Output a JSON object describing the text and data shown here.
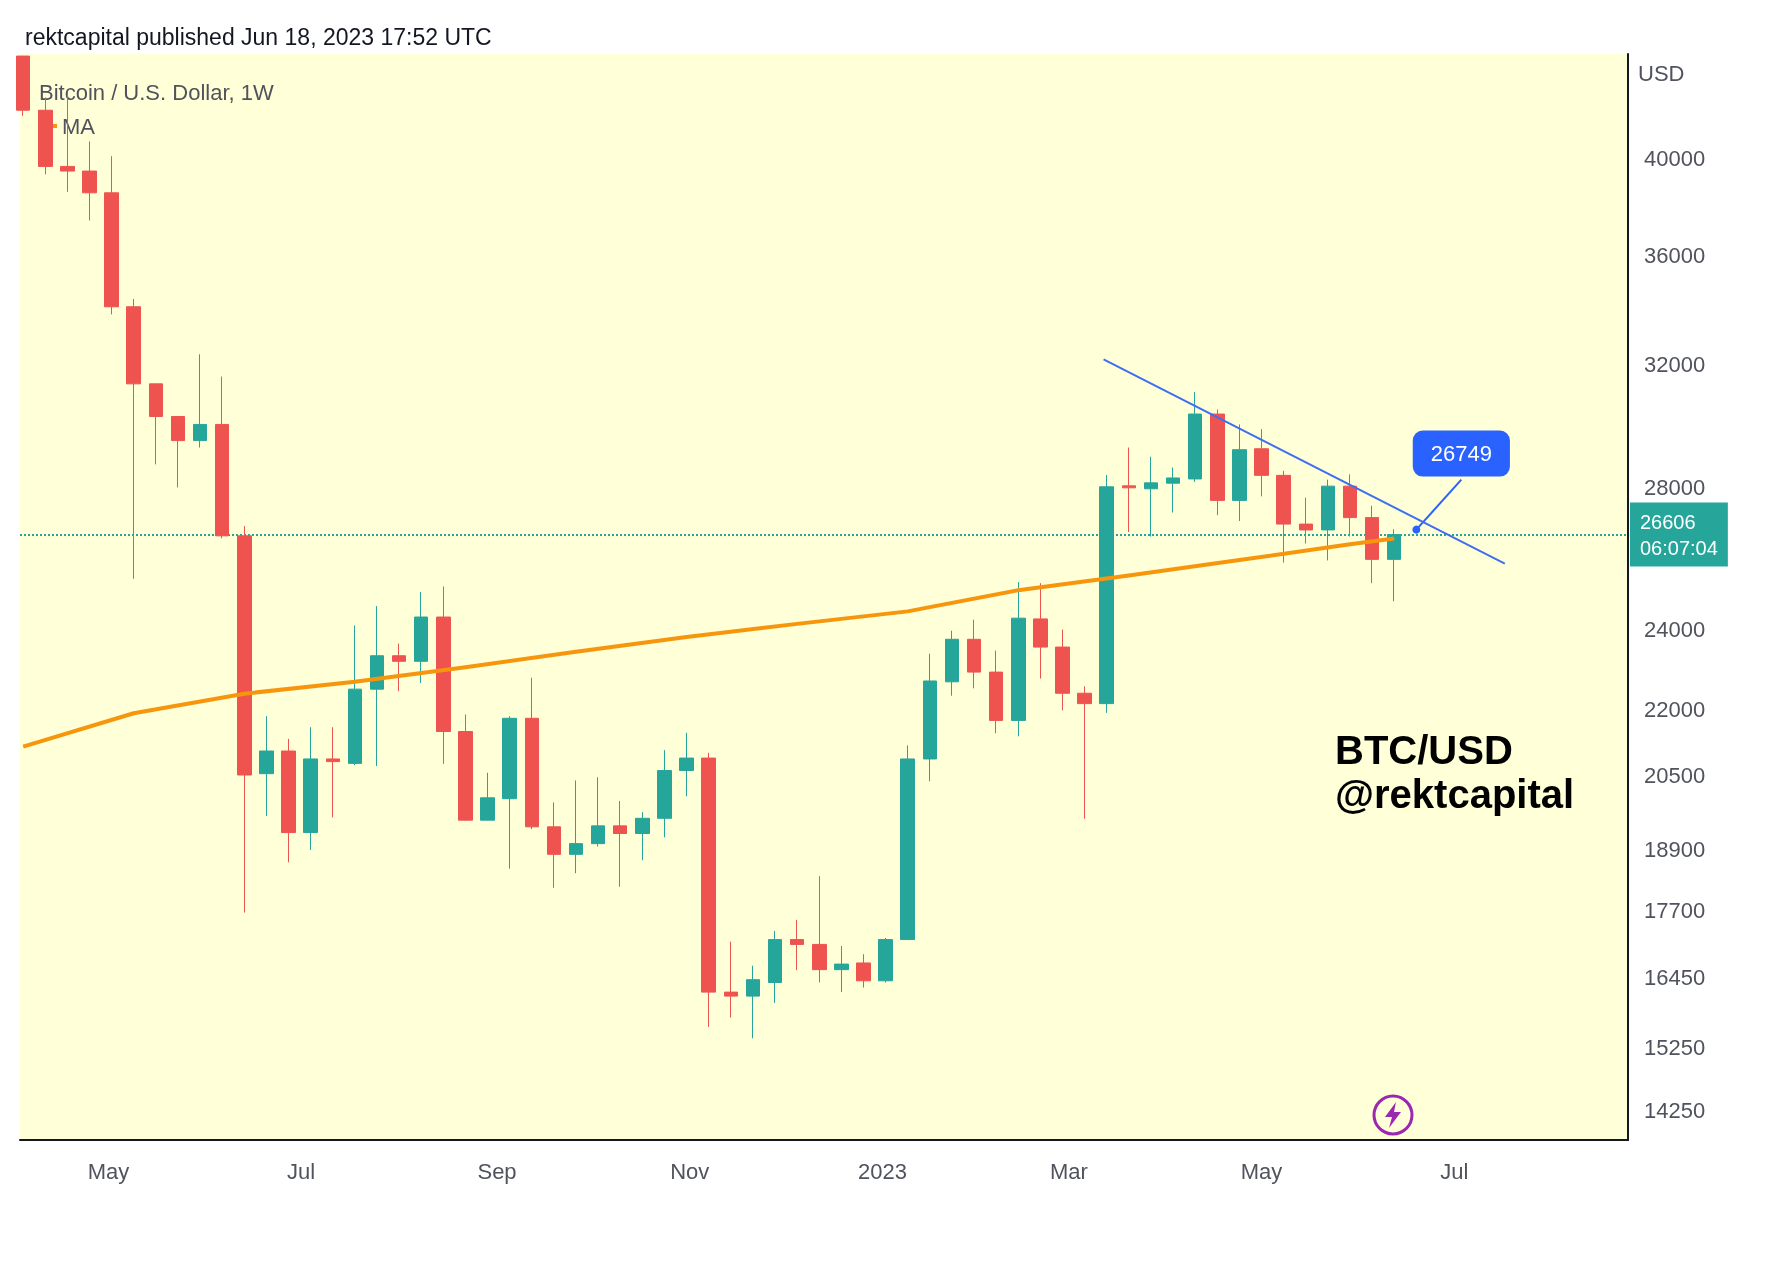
{
  "chart_data": {
    "type": "candlestick",
    "title": "rektcapital published Jun 18, 2023 17:52 UTC",
    "subtitle": "Bitcoin / U.S. Dollar, 1W",
    "ylabel": "USD",
    "x": [
      "2022-04-04",
      "2022-04-11",
      "2022-04-18",
      "2022-04-25",
      "2022-05-02",
      "2022-05-09",
      "2022-05-16",
      "2022-05-23",
      "2022-05-30",
      "2022-06-06",
      "2022-06-13",
      "2022-06-20",
      "2022-06-27",
      "2022-07-04",
      "2022-07-11",
      "2022-07-18",
      "2022-07-25",
      "2022-08-01",
      "2022-08-08",
      "2022-08-15",
      "2022-08-22",
      "2022-08-29",
      "2022-09-05",
      "2022-09-12",
      "2022-09-19",
      "2022-09-26",
      "2022-10-03",
      "2022-10-10",
      "2022-10-17",
      "2022-10-24",
      "2022-10-31",
      "2022-11-07",
      "2022-11-14",
      "2022-11-21",
      "2022-11-28",
      "2022-12-05",
      "2022-12-12",
      "2022-12-19",
      "2022-12-26",
      "2023-01-02",
      "2023-01-09",
      "2023-01-16",
      "2023-01-23",
      "2023-01-30",
      "2023-02-06",
      "2023-02-13",
      "2023-02-20",
      "2023-02-27",
      "2023-03-06",
      "2023-03-13",
      "2023-03-20",
      "2023-03-27",
      "2023-04-03",
      "2023-04-10",
      "2023-04-17",
      "2023-04-24",
      "2023-05-01",
      "2023-05-08",
      "2023-05-15",
      "2023-05-22",
      "2023-05-29",
      "2023-06-05",
      "2023-06-12"
    ],
    "ohlc": [
      [
        44700,
        44700,
        41900,
        42150
      ],
      [
        42150,
        42740,
        39320,
        39660
      ],
      [
        39660,
        42860,
        38580,
        39460
      ],
      [
        39460,
        40750,
        37400,
        38540
      ],
      [
        38540,
        40100,
        33780,
        34060
      ],
      [
        34060,
        34350,
        25360,
        31330
      ],
      [
        31330,
        31330,
        28710,
        30240
      ],
      [
        30240,
        30240,
        28000,
        29460
      ],
      [
        29460,
        32350,
        29240,
        29980
      ],
      [
        29980,
        31580,
        26500,
        26570
      ],
      [
        26570,
        26850,
        17660,
        20500
      ],
      [
        20530,
        21850,
        19610,
        21040
      ],
      [
        21040,
        21320,
        18650,
        19260
      ],
      [
        19260,
        21590,
        18900,
        20860
      ],
      [
        20860,
        21590,
        19580,
        20800
      ],
      [
        20760,
        24110,
        20720,
        22500
      ],
      [
        22500,
        24620,
        20700,
        23330
      ],
      [
        23330,
        23640,
        22450,
        23190
      ],
      [
        23190,
        25000,
        22650,
        24330
      ],
      [
        24330,
        25150,
        20750,
        21490
      ],
      [
        21490,
        21890,
        19510,
        19520
      ],
      [
        19520,
        20550,
        19520,
        20000
      ],
      [
        19980,
        21850,
        18520,
        21800
      ],
      [
        21800,
        22780,
        19330,
        19380
      ],
      [
        19380,
        19900,
        18140,
        18810
      ],
      [
        18810,
        20380,
        18430,
        19030
      ],
      [
        19030,
        20450,
        18970,
        19400
      ],
      [
        19400,
        19930,
        18160,
        19240
      ],
      [
        19240,
        19690,
        18690,
        19560
      ],
      [
        19560,
        21060,
        19160,
        20600
      ],
      [
        20600,
        21460,
        20030,
        20880
      ],
      [
        20880,
        21000,
        15600,
        16200
      ],
      [
        16200,
        17110,
        15760,
        16130
      ],
      [
        16130,
        16670,
        15410,
        16420
      ],
      [
        16370,
        17310,
        16010,
        17150
      ],
      [
        17150,
        17520,
        16590,
        17060
      ],
      [
        17060,
        18370,
        16370,
        16600
      ],
      [
        16600,
        17030,
        16200,
        16700
      ],
      [
        16720,
        16880,
        16280,
        16400
      ],
      [
        16400,
        17180,
        16370,
        17150
      ],
      [
        17150,
        21170,
        17150,
        20860
      ],
      [
        20860,
        23380,
        20360,
        22700
      ],
      [
        22680,
        23970,
        22340,
        23750
      ],
      [
        23750,
        24260,
        22520,
        22920
      ],
      [
        22920,
        23460,
        21450,
        21750
      ],
      [
        21750,
        25270,
        21380,
        24300
      ],
      [
        24280,
        25240,
        22760,
        23550
      ],
      [
        23550,
        24000,
        21990,
        22400
      ],
      [
        22400,
        22570,
        19550,
        22150
      ],
      [
        22150,
        28380,
        21930,
        28020
      ],
      [
        28050,
        29240,
        26680,
        27990
      ],
      [
        27960,
        28950,
        26550,
        28140
      ],
      [
        28130,
        28610,
        27250,
        28290
      ],
      [
        28260,
        31050,
        28170,
        30320
      ],
      [
        30320,
        30470,
        27170,
        27610
      ],
      [
        27610,
        29980,
        27000,
        29170
      ],
      [
        29200,
        29830,
        27730,
        28370
      ],
      [
        28370,
        28510,
        25810,
        26910
      ],
      [
        26910,
        27690,
        26350,
        26740
      ],
      [
        26740,
        28240,
        25870,
        28040
      ],
      [
        28040,
        28400,
        26550,
        27100
      ],
      [
        27100,
        27450,
        25240,
        25900
      ],
      [
        25900,
        26760,
        24750,
        26606
      ]
    ],
    "series": [
      {
        "name": "MA",
        "type": "line",
        "color": "#f7960d",
        "x": [
          "2022-04-04",
          "2022-05-09",
          "2022-06-13",
          "2022-07-18",
          "2022-08-22",
          "2022-09-26",
          "2022-10-31",
          "2022-12-05",
          "2023-01-09",
          "2023-02-13",
          "2023-03-20",
          "2023-04-24",
          "2023-05-29",
          "2023-06-12"
        ],
        "values": [
          21140,
          21920,
          22390,
          22680,
          23040,
          23430,
          23810,
          24150,
          24480,
          25050,
          25450,
          25880,
          26330,
          26490
        ]
      },
      {
        "type": "line",
        "color": "#3f6ff0",
        "x": [
          "2023-03-12",
          "2023-07-17"
        ],
        "values": [
          32170,
          25780
        ]
      }
    ],
    "ref_lines": [
      {
        "axis": "y",
        "value": 26606,
        "label": "26606\n06:07:04",
        "color": "#26a69a",
        "line_style": "dotted"
      }
    ],
    "annotations": [
      {
        "text": "26749",
        "x": "2023-06-19",
        "y": 26749
      },
      "BTC/USD",
      "@rektcapital"
    ],
    "xlim": [
      "2022-04-03",
      "2023-08-25"
    ],
    "xticks": [
      {
        "value": "2022-05-01",
        "label": "May"
      },
      {
        "value": "2022-07-01",
        "label": "Jul"
      },
      {
        "value": "2022-09-01",
        "label": "Sep"
      },
      {
        "value": "2022-11-01",
        "label": "Nov"
      },
      {
        "value": "2023-01-01",
        "label": "2023"
      },
      {
        "value": "2023-03-01",
        "label": "Mar"
      },
      {
        "value": "2023-05-01",
        "label": "May"
      },
      {
        "value": "2023-07-01",
        "label": "Jul"
      }
    ],
    "ylim": [
      13800,
      44800
    ],
    "yticks": [
      14250,
      15250,
      16450,
      17700,
      18900,
      20500,
      22000,
      24000,
      28000,
      32000,
      36000,
      40000
    ],
    "log": true,
    "grid": false,
    "legend": "top left",
    "marker": "none",
    "line_style": "solid"
  }
}
